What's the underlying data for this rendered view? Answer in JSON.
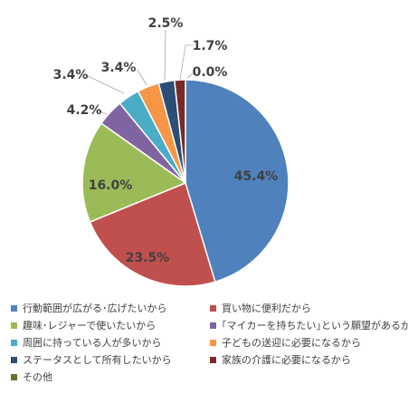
{
  "chart_data": {
    "type": "pie",
    "title": "",
    "categories": [
      "行動範囲が広がる･広げたいから",
      "買い物に便利だから",
      "趣味･レジャーで使いたいから",
      "｢マイカーを持ちたい｣という願望があるから",
      "周囲に持っている人が多いから",
      "子どもの送迎に必要になるから",
      "ステータスとして所有したいから",
      "家族の介護に必要になるから",
      "その他"
    ],
    "values": [
      45.4,
      23.5,
      16.0,
      4.2,
      3.4,
      3.4,
      2.5,
      1.7,
      0.0
    ],
    "data_labels": [
      "45.4%",
      "23.5%",
      "16.0%",
      "4.2%",
      "3.4%",
      "3.4%",
      "2.5%",
      "1.7%",
      "0.0%"
    ],
    "colors": [
      "#4F81BD",
      "#C0504D",
      "#9BBB59",
      "#8064A2",
      "#4BACC6",
      "#F79646",
      "#2C4D75",
      "#772C2A",
      "#5F7530"
    ],
    "legend_position": "bottom",
    "start_angle_deg": 0,
    "direction": "clockwise"
  }
}
